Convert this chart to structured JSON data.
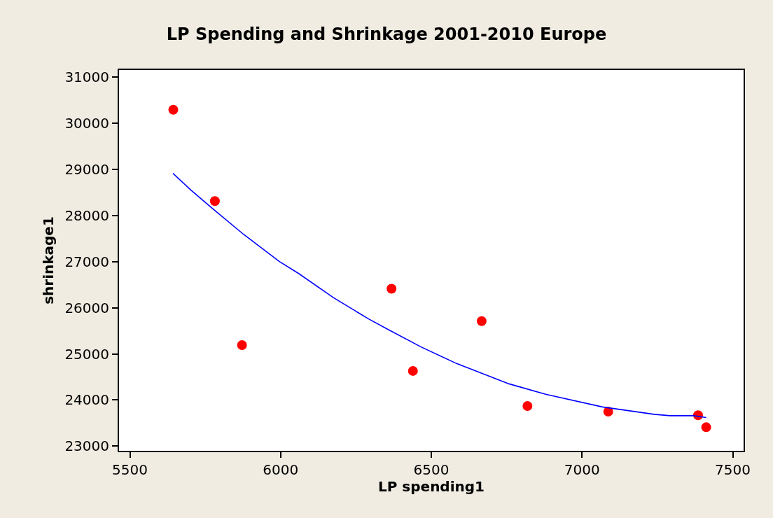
{
  "chart_data": {
    "type": "scatter",
    "title": "LP Spending and Shrinkage 2001-2010 Europe",
    "xlabel": "LP spending1",
    "ylabel": "shrinkage1",
    "xlim": [
      5464,
      7536
    ],
    "ylim": [
      22900,
      31150
    ],
    "xticks": [
      5500,
      6000,
      6500,
      7000,
      7500
    ],
    "yticks": [
      23000,
      24000,
      25000,
      26000,
      27000,
      28000,
      29000,
      30000,
      31000
    ],
    "series": [
      {
        "type": "scatter",
        "color": "#ff0000",
        "marker": "circle",
        "x": [
          5644,
          5782,
          5872,
          6368,
          6439,
          6667,
          6819,
          7087,
          7385,
          7412
        ],
        "values": [
          30290,
          28310,
          25190,
          26410,
          24630,
          25710,
          23870,
          23750,
          23670,
          23410
        ]
      },
      {
        "type": "line",
        "color": "#0000ff",
        "marker": "none",
        "line_style": "solid",
        "x": [
          5643,
          5702,
          5774,
          5877,
          5996,
          6060,
          6175,
          6291,
          6359,
          6466,
          6584,
          6758,
          6882,
          7068,
          7239,
          7292,
          7370,
          7412
        ],
        "values": [
          28910,
          28550,
          28150,
          27590,
          27000,
          26740,
          26220,
          25760,
          25520,
          25150,
          24790,
          24350,
          24120,
          23850,
          23690,
          23660,
          23660,
          23620
        ]
      }
    ]
  }
}
